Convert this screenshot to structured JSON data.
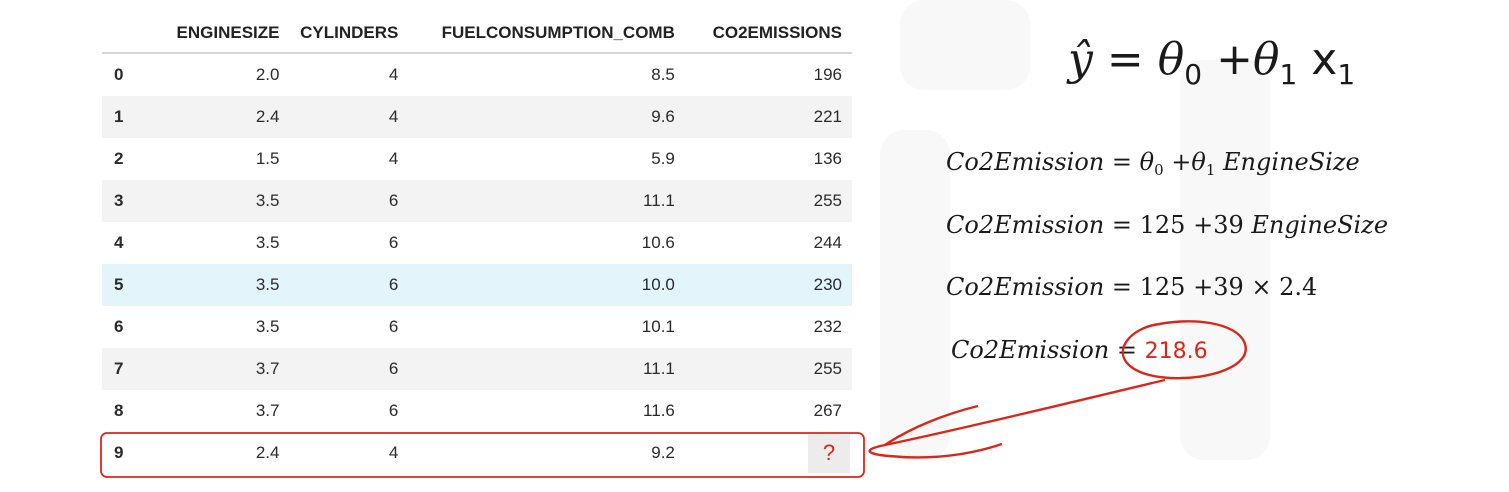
{
  "table": {
    "columns": [
      "",
      "ENGINESIZE",
      "CYLINDERS",
      "FUELCONSUMPTION_COMB",
      "CO2EMISSIONS"
    ],
    "rows": [
      [
        "0",
        "2.0",
        "4",
        "8.5",
        "196"
      ],
      [
        "1",
        "2.4",
        "4",
        "9.6",
        "221"
      ],
      [
        "2",
        "1.5",
        "4",
        "5.9",
        "136"
      ],
      [
        "3",
        "3.5",
        "6",
        "11.1",
        "255"
      ],
      [
        "4",
        "3.5",
        "6",
        "10.6",
        "244"
      ],
      [
        "5",
        "3.5",
        "6",
        "10.0",
        "230"
      ],
      [
        "6",
        "3.5",
        "6",
        "10.1",
        "232"
      ],
      [
        "7",
        "3.7",
        "6",
        "11.1",
        "255"
      ],
      [
        "8",
        "3.7",
        "6",
        "11.6",
        "267"
      ],
      [
        "9",
        "2.4",
        "4",
        "9.2",
        "?"
      ]
    ],
    "highlighted_row_index": 5,
    "target_row_index": 9
  },
  "formulas": {
    "general": {
      "lhs": "ŷ",
      "eq": "=",
      "t0": "θ",
      "t0_sub": "0",
      "plus": "+",
      "t1": "θ",
      "t1_sub": "1",
      "x": "x",
      "x_sub": "1"
    },
    "line1": {
      "lhs": "Co2Emission",
      "eq": "=",
      "t0": "θ",
      "t0_sub": "0",
      "plus": "+",
      "t1": "θ",
      "t1_sub": "1",
      "term": "EngineSize"
    },
    "line2": {
      "lhs": "Co2Emission",
      "eq": "=",
      "c0": "125",
      "plus": "+",
      "c1": "39",
      "term": "EngineSize"
    },
    "line3": {
      "lhs": "Co2Emission",
      "eq": "=",
      "c0": "125",
      "plus": "+",
      "c1": "39",
      "times": "×",
      "value": "2.4"
    },
    "line4": {
      "lhs": "Co2Emission",
      "eq": "=",
      "result": "218.6"
    }
  },
  "colors": {
    "annotation": "#d8281a",
    "row_highlight": "#e4f4fb",
    "row_stripe": "#f3f3f3"
  }
}
